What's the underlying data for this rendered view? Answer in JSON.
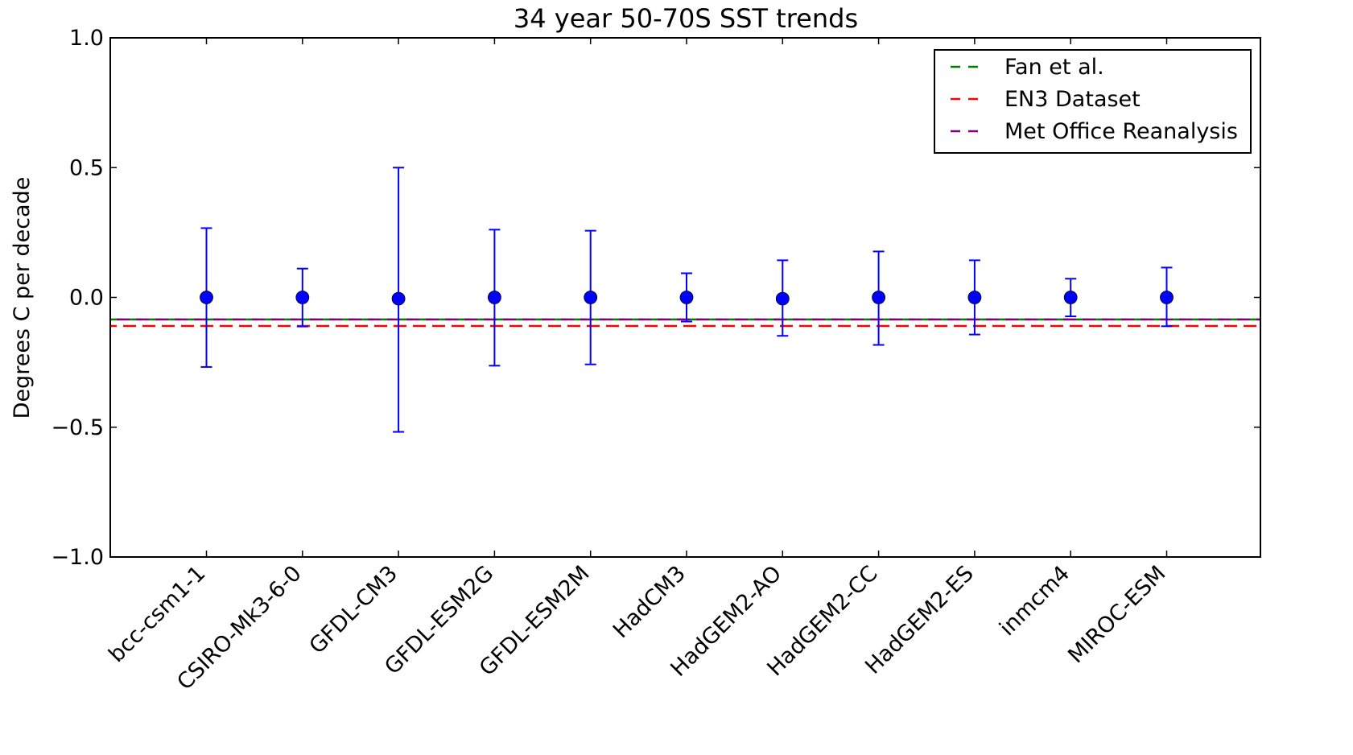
{
  "chart_data": {
    "type": "scatter",
    "title": "34 year 50-70S SST trends",
    "xlabel": "",
    "ylabel": "Degrees C per decade",
    "ylim": [
      -1.0,
      1.0
    ],
    "yticks": [
      -1.0,
      -0.5,
      0.0,
      0.5,
      1.0
    ],
    "ytick_labels": [
      "−1.0",
      "−0.5",
      "0.0",
      "0.5",
      "1.0"
    ],
    "categories": [
      "bcc-csm1-1",
      "CSIRO-Mk3-6-0",
      "GFDL-CM3",
      "GFDL-ESM2G",
      "GFDL-ESM2M",
      "HadCM3",
      "HadGEM2-AO",
      "HadGEM2-CC",
      "HadGEM2-ES",
      "inmcm4",
      "MIROC-ESM"
    ],
    "series": [
      {
        "type": "errorbar",
        "color": "#0000ff",
        "values": [
          0.0,
          0.0,
          -0.005,
          0.0,
          0.0,
          0.0,
          -0.005,
          0.0,
          0.0,
          0.0,
          0.0
        ],
        "lower": [
          -0.268,
          -0.112,
          -0.518,
          -0.263,
          -0.258,
          -0.093,
          -0.148,
          -0.183,
          -0.143,
          -0.073,
          -0.111
        ],
        "upper": [
          0.267,
          0.111,
          0.5,
          0.261,
          0.257,
          0.093,
          0.143,
          0.177,
          0.143,
          0.072,
          0.115
        ]
      }
    ],
    "reference_lines": [
      {
        "name": "Fan et al.",
        "value": -0.085,
        "color": "#008000"
      },
      {
        "name": "EN3 Dataset",
        "value": -0.11,
        "color": "#ff0000"
      },
      {
        "name": "Met Office Reanalysis",
        "value": -0.085,
        "color": "#800080"
      }
    ],
    "legend_position": "top-right",
    "grid": false
  }
}
